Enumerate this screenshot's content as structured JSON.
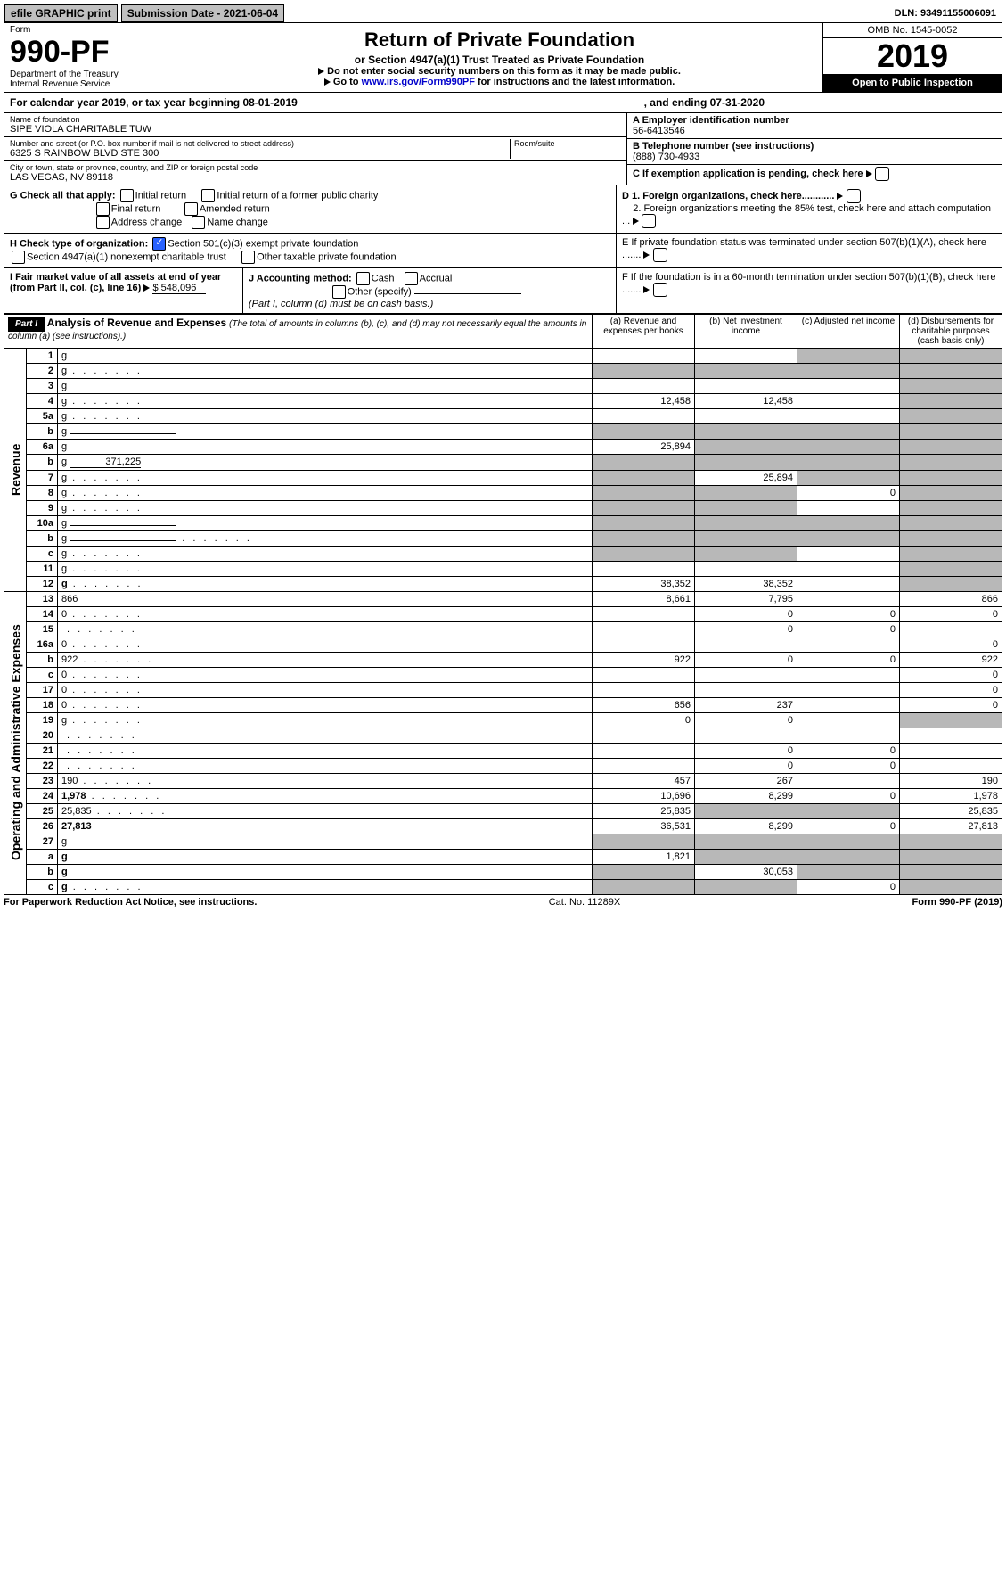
{
  "topbar": {
    "efile": "efile GRAPHIC print",
    "submission": "Submission Date - 2021-06-04",
    "dln": "DLN: 93491155006091"
  },
  "header": {
    "form_word": "Form",
    "form_no": "990-PF",
    "dept": "Department of the Treasury",
    "irs": "Internal Revenue Service",
    "title": "Return of Private Foundation",
    "subtitle": "or Section 4947(a)(1) Trust Treated as Private Foundation",
    "warn": "Do not enter social security numbers on this form as it may be made public.",
    "goto_pre": "Go to ",
    "goto_link": "www.irs.gov/Form990PF",
    "goto_post": " for instructions and the latest information.",
    "omb": "OMB No. 1545-0052",
    "year": "2019",
    "open": "Open to Public Inspection"
  },
  "calendar": {
    "text1": "For calendar year 2019, or tax year beginning 08-01-2019",
    "text2": ", and ending 07-31-2020"
  },
  "name": {
    "lbl_name": "Name of foundation",
    "name": "SIPE VIOLA CHARITABLE TUW",
    "lbl_addr": "Number and street (or P.O. box number if mail is not delivered to street address)",
    "addr": "6325 S RAINBOW BLVD STE 300",
    "lbl_room": "Room/suite",
    "lbl_city": "City or town, state or province, country, and ZIP or foreign postal code",
    "city": "LAS VEGAS, NV  89118",
    "a_lbl": "A Employer identification number",
    "a_val": "56-6413546",
    "b_lbl": "B Telephone number (see instructions)",
    "b_val": "(888) 730-4933",
    "c_lbl": "C If exemption application is pending, check here",
    "d1": "D 1. Foreign organizations, check here............",
    "d2": "2. Foreign organizations meeting the 85% test, check here and attach computation ...",
    "e": "E  If private foundation status was terminated under section 507(b)(1)(A), check here .......",
    "f": "F  If the foundation is in a 60-month termination under section 507(b)(1)(B), check here ......."
  },
  "g": {
    "label": "G Check all that apply:",
    "o1": "Initial return",
    "o2": "Initial return of a former public charity",
    "o3": "Final return",
    "o4": "Amended return",
    "o5": "Address change",
    "o6": "Name change"
  },
  "h": {
    "label": "H Check type of organization:",
    "o1": "Section 501(c)(3) exempt private foundation",
    "o2": "Section 4947(a)(1) nonexempt charitable trust",
    "o3": "Other taxable private foundation"
  },
  "i": {
    "label": "I Fair market value of all assets at end of year (from Part II, col. (c), line 16)",
    "amount": "$  548,096"
  },
  "j": {
    "label": "J Accounting method:",
    "o1": "Cash",
    "o2": "Accrual",
    "o3": "Other (specify)",
    "note": "(Part I, column (d) must be on cash basis.)"
  },
  "part1": {
    "tag": "Part I",
    "title": "Analysis of Revenue and Expenses",
    "sub": "(The total of amounts in columns (b), (c), and (d) may not necessarily equal the amounts in column (a) (see instructions).)",
    "col_a": "(a)    Revenue and expenses per books",
    "col_b": "(b)  Net investment income",
    "col_c": "(c)  Adjusted net income",
    "col_d": "(d)  Disbursements for charitable purposes (cash basis only)",
    "side_rev": "Revenue",
    "side_exp": "Operating and Administrative Expenses"
  },
  "rows": [
    {
      "n": "1",
      "d": "g",
      "a": "",
      "b": "",
      "c": "g"
    },
    {
      "n": "2",
      "d": "g",
      "a": "g",
      "b": "g",
      "c": "g",
      "dots": 1
    },
    {
      "n": "3",
      "d": "g",
      "a": "",
      "b": "",
      "c": ""
    },
    {
      "n": "4",
      "d": "g",
      "a": "12,458",
      "b": "12,458",
      "c": "",
      "dots": 1
    },
    {
      "n": "5a",
      "d": "g",
      "a": "",
      "b": "",
      "c": "",
      "dots": 1
    },
    {
      "n": "b",
      "d": "g",
      "a": "g",
      "b": "g",
      "c": "g",
      "inline": 1
    },
    {
      "n": "6a",
      "d": "g",
      "a": "25,894",
      "b": "g",
      "c": "g"
    },
    {
      "n": "b",
      "d": "g",
      "a": "g",
      "b": "g",
      "c": "g",
      "inlineval": "371,225"
    },
    {
      "n": "7",
      "d": "g",
      "a": "g",
      "b": "25,894",
      "c": "g",
      "dots": 1
    },
    {
      "n": "8",
      "d": "g",
      "a": "g",
      "b": "g",
      "c": "0",
      "dots": 1
    },
    {
      "n": "9",
      "d": "g",
      "a": "g",
      "b": "g",
      "c": "",
      "dots": 1
    },
    {
      "n": "10a",
      "d": "g",
      "a": "g",
      "b": "g",
      "c": "g",
      "inline": 1
    },
    {
      "n": "b",
      "d": "g",
      "a": "g",
      "b": "g",
      "c": "g",
      "inline": 1,
      "dots": 1
    },
    {
      "n": "c",
      "d": "g",
      "a": "g",
      "b": "g",
      "c": "",
      "dots": 1
    },
    {
      "n": "11",
      "d": "g",
      "a": "",
      "b": "",
      "c": "",
      "dots": 1
    },
    {
      "n": "12",
      "d": "g",
      "a": "38,352",
      "b": "38,352",
      "c": "",
      "bold": 1,
      "dots": 1
    }
  ],
  "rows_exp": [
    {
      "n": "13",
      "d": "866",
      "a": "8,661",
      "b": "7,795",
      "c": ""
    },
    {
      "n": "14",
      "d": "0",
      "a": "",
      "b": "0",
      "c": "0",
      "dots": 1
    },
    {
      "n": "15",
      "d": "",
      "a": "",
      "b": "0",
      "c": "0",
      "dots": 1
    },
    {
      "n": "16a",
      "d": "0",
      "a": "",
      "b": "",
      "c": "",
      "dots": 1
    },
    {
      "n": "b",
      "d": "922",
      "a": "922",
      "b": "0",
      "c": "0",
      "dots": 1
    },
    {
      "n": "c",
      "d": "0",
      "a": "",
      "b": "",
      "c": "",
      "dots": 1
    },
    {
      "n": "17",
      "d": "0",
      "a": "",
      "b": "",
      "c": "",
      "dots": 1
    },
    {
      "n": "18",
      "d": "0",
      "a": "656",
      "b": "237",
      "c": "",
      "dots": 1
    },
    {
      "n": "19",
      "d": "g",
      "a": "0",
      "b": "0",
      "c": "",
      "dots": 1
    },
    {
      "n": "20",
      "d": "",
      "a": "",
      "b": "",
      "c": "",
      "dots": 1
    },
    {
      "n": "21",
      "d": "",
      "a": "",
      "b": "0",
      "c": "0",
      "dots": 1
    },
    {
      "n": "22",
      "d": "",
      "a": "",
      "b": "0",
      "c": "0",
      "dots": 1
    },
    {
      "n": "23",
      "d": "190",
      "a": "457",
      "b": "267",
      "c": "",
      "dots": 1
    },
    {
      "n": "24",
      "d": "1,978",
      "a": "10,696",
      "b": "8,299",
      "c": "0",
      "bold": 1,
      "dots": 1
    },
    {
      "n": "25",
      "d": "25,835",
      "a": "25,835",
      "b": "g",
      "c": "g",
      "dots": 1
    },
    {
      "n": "26",
      "d": "27,813",
      "a": "36,531",
      "b": "8,299",
      "c": "0",
      "bold": 1
    },
    {
      "n": "27",
      "d": "g",
      "a": "g",
      "b": "g",
      "c": "g"
    },
    {
      "n": "a",
      "d": "g",
      "a": "1,821",
      "b": "g",
      "c": "g",
      "bold": 1
    },
    {
      "n": "b",
      "d": "g",
      "a": "g",
      "b": "30,053",
      "c": "g",
      "bold": 1
    },
    {
      "n": "c",
      "d": "g",
      "a": "g",
      "b": "g",
      "c": "0",
      "bold": 1,
      "dots": 1
    }
  ],
  "footer": {
    "left": "For Paperwork Reduction Act Notice, see instructions.",
    "mid": "Cat. No. 11289X",
    "right": "Form 990-PF (2019)"
  }
}
